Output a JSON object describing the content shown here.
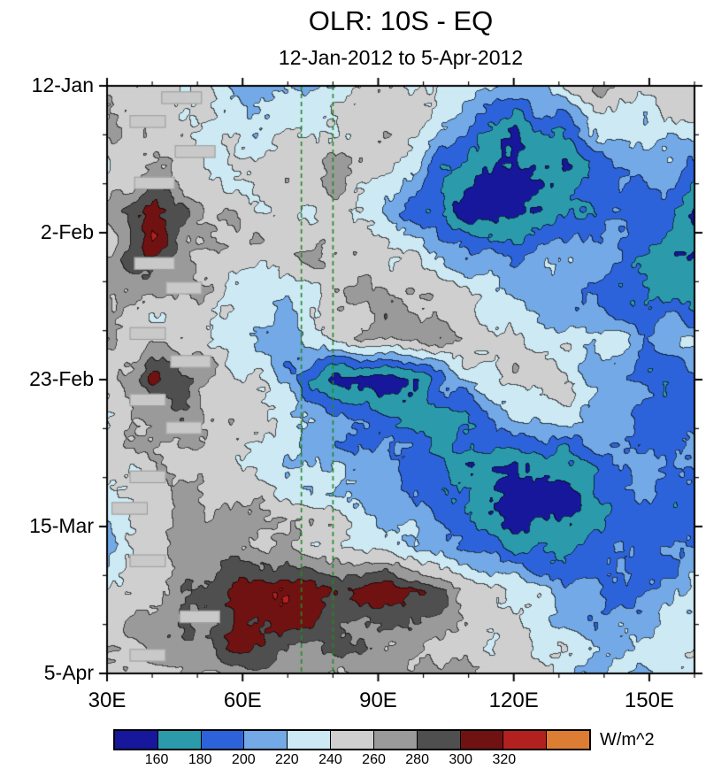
{
  "chart_data": {
    "type": "heatmap",
    "title": "OLR: 10S - EQ",
    "subtitle": "12-Jan-2012 to 5-Apr-2012",
    "x_axis": {
      "range": [
        30,
        160
      ],
      "ticks": [
        {
          "lon": 30,
          "label": "30E"
        },
        {
          "lon": 60,
          "label": "60E"
        },
        {
          "lon": 90,
          "label": "90E"
        },
        {
          "lon": 120,
          "label": "120E"
        },
        {
          "lon": 150,
          "label": "150E"
        }
      ],
      "minor_lons": [
        40,
        50,
        70,
        80,
        100,
        110,
        130,
        140,
        160
      ]
    },
    "y_axis": {
      "range": [
        0,
        84
      ],
      "ticks": [
        {
          "day": 0,
          "label": "12-Jan"
        },
        {
          "day": 21,
          "label": "2-Feb"
        },
        {
          "day": 42,
          "label": "23-Feb"
        },
        {
          "day": 63,
          "label": "15-Mar"
        },
        {
          "day": 84,
          "label": "5-Apr"
        }
      ],
      "minor_days": [
        7,
        14,
        28,
        35,
        49,
        56,
        70,
        77
      ]
    },
    "levels": [
      160,
      180,
      200,
      220,
      240,
      260,
      280,
      300,
      320,
      340
    ],
    "colors": [
      "#17179b",
      "#2b9bab",
      "#2d63da",
      "#72a9e6",
      "#cce9f4",
      "#cfcfcf",
      "#9a9a9a",
      "#4f4f4f",
      "#701212",
      "#b32020",
      "#dd7d33"
    ],
    "reference_lines": {
      "color": "#228B22",
      "style": "dashed",
      "lons": [
        73,
        80
      ]
    },
    "grid": {
      "lons": [
        30,
        40,
        50,
        60,
        70,
        80,
        90,
        100,
        110,
        120,
        130,
        140,
        150,
        160
      ],
      "days": [
        0,
        6,
        12,
        18,
        24,
        30,
        36,
        42,
        48,
        54,
        60,
        66,
        72,
        78,
        84
      ],
      "values": [
        [
          255,
          250,
          242,
          212,
          228,
          222,
          252,
          248,
          220,
          212,
          228,
          262,
          256,
          250
        ],
        [
          252,
          256,
          245,
          220,
          232,
          248,
          262,
          242,
          198,
          172,
          190,
          228,
          220,
          234
        ],
        [
          250,
          260,
          254,
          240,
          248,
          258,
          248,
          204,
          163,
          147,
          163,
          188,
          212,
          202
        ],
        [
          254,
          316,
          264,
          252,
          240,
          252,
          224,
          184,
          150,
          145,
          167,
          192,
          188,
          162
        ],
        [
          250,
          310,
          260,
          262,
          252,
          262,
          252,
          228,
          204,
          194,
          212,
          202,
          170,
          150
        ],
        [
          256,
          252,
          264,
          228,
          220,
          252,
          268,
          258,
          242,
          228,
          208,
          192,
          172,
          183
        ],
        [
          252,
          244,
          258,
          214,
          210,
          238,
          264,
          272,
          254,
          242,
          224,
          232,
          208,
          218
        ],
        [
          254,
          312,
          268,
          242,
          210,
          152,
          148,
          170,
          224,
          248,
          242,
          208,
          189,
          202
        ],
        [
          252,
          268,
          272,
          252,
          232,
          208,
          191,
          177,
          188,
          208,
          228,
          218,
          197,
          187
        ],
        [
          256,
          252,
          262,
          242,
          218,
          224,
          208,
          187,
          161,
          148,
          161,
          193,
          210,
          199
        ],
        [
          213,
          254,
          266,
          256,
          244,
          234,
          218,
          197,
          171,
          150,
          145,
          171,
          193,
          185
        ],
        [
          211,
          252,
          272,
          266,
          260,
          254,
          242,
          224,
          198,
          181,
          171,
          185,
          203,
          198
        ],
        [
          245,
          260,
          274,
          306,
          318,
          300,
          310,
          292,
          262,
          238,
          213,
          195,
          205,
          215
        ],
        [
          249,
          264,
          270,
          314,
          302,
          286,
          276,
          266,
          256,
          242,
          226,
          205,
          217,
          227
        ],
        [
          255,
          260,
          266,
          276,
          270,
          262,
          268,
          264,
          254,
          246,
          236,
          217,
          229,
          237
        ]
      ]
    },
    "missing_blocks": [
      {
        "lon": 42,
        "day": 0.8,
        "dlon": 9,
        "dday": 1.8
      },
      {
        "lon": 35,
        "day": 4.2,
        "dlon": 8,
        "dday": 1.8
      },
      {
        "lon": 45,
        "day": 8.5,
        "dlon": 9,
        "dday": 1.8
      },
      {
        "lon": 36,
        "day": 13.0,
        "dlon": 9,
        "dday": 1.8
      },
      {
        "lon": 36,
        "day": 24.5,
        "dlon": 9,
        "dday": 1.8
      },
      {
        "lon": 43,
        "day": 28.0,
        "dlon": 8,
        "dday": 1.8
      },
      {
        "lon": 35,
        "day": 34.5,
        "dlon": 8,
        "dday": 1.8
      },
      {
        "lon": 44,
        "day": 38.5,
        "dlon": 9,
        "dday": 1.8
      },
      {
        "lon": 35,
        "day": 44.0,
        "dlon": 8,
        "dday": 1.8
      },
      {
        "lon": 43,
        "day": 48.0,
        "dlon": 8,
        "dday": 1.8
      },
      {
        "lon": 35,
        "day": 55.0,
        "dlon": 8,
        "dday": 1.8
      },
      {
        "lon": 31,
        "day": 59.5,
        "dlon": 8,
        "dday": 1.8
      },
      {
        "lon": 35,
        "day": 67.0,
        "dlon": 8,
        "dday": 1.8
      },
      {
        "lon": 46,
        "day": 75.0,
        "dlon": 9,
        "dday": 1.8
      },
      {
        "lon": 35,
        "day": 80.5,
        "dlon": 8,
        "dday": 1.8
      }
    ]
  },
  "colorbar": {
    "units": "W/m^2",
    "labels": [
      "160",
      "180",
      "200",
      "220",
      "240",
      "260",
      "280",
      "300",
      "320"
    ]
  }
}
